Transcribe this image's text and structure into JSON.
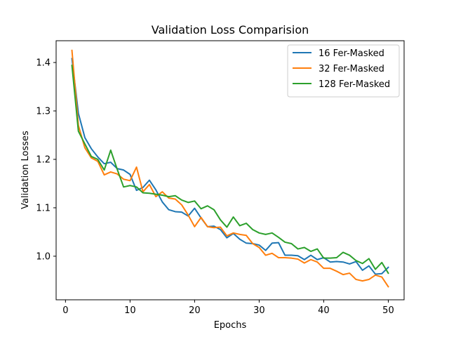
{
  "chart_data": {
    "type": "line",
    "title": "Validation Loss Comparision",
    "xlabel": "Epochs",
    "ylabel": "Validation Losses",
    "xlim": [
      -1.45,
      52.45
    ],
    "ylim": [
      0.91,
      1.445
    ],
    "xticks": [
      0,
      10,
      20,
      30,
      40,
      50
    ],
    "yticks": [
      1.0,
      1.1,
      1.2,
      1.3,
      1.4
    ],
    "grid": false,
    "legend_position": "top-right",
    "x": [
      1,
      2,
      3,
      4,
      5,
      6,
      7,
      8,
      9,
      10,
      11,
      12,
      13,
      14,
      15,
      16,
      17,
      18,
      19,
      20,
      21,
      22,
      23,
      24,
      25,
      26,
      27,
      28,
      29,
      30,
      31,
      32,
      33,
      34,
      35,
      36,
      37,
      38,
      39,
      40,
      41,
      42,
      43,
      44,
      45,
      46,
      47,
      48,
      49,
      50
    ],
    "series": [
      {
        "name": "16 Fer-Masked",
        "color": "#1f77b4",
        "values": [
          1.408,
          1.295,
          1.245,
          1.222,
          1.205,
          1.191,
          1.194,
          1.181,
          1.178,
          1.169,
          1.136,
          1.142,
          1.157,
          1.137,
          1.112,
          1.096,
          1.092,
          1.091,
          1.083,
          1.099,
          1.079,
          1.061,
          1.062,
          1.055,
          1.038,
          1.047,
          1.035,
          1.027,
          1.026,
          1.023,
          1.012,
          1.027,
          1.028,
          1.002,
          1.002,
          1.001,
          0.993,
          1.002,
          0.993,
          0.997,
          0.988,
          0.989,
          0.988,
          0.984,
          0.989,
          0.971,
          0.98,
          0.963,
          0.964,
          0.977
        ]
      },
      {
        "name": "32 Fer-Masked",
        "color": "#ff7f0e",
        "values": [
          1.425,
          1.27,
          1.224,
          1.203,
          1.196,
          1.168,
          1.174,
          1.17,
          1.159,
          1.156,
          1.184,
          1.133,
          1.148,
          1.123,
          1.133,
          1.12,
          1.118,
          1.106,
          1.085,
          1.061,
          1.08,
          1.061,
          1.059,
          1.06,
          1.042,
          1.048,
          1.045,
          1.043,
          1.026,
          1.018,
          1.002,
          1.006,
          0.997,
          0.997,
          0.996,
          0.994,
          0.986,
          0.993,
          0.988,
          0.975,
          0.975,
          0.969,
          0.962,
          0.965,
          0.952,
          0.949,
          0.952,
          0.961,
          0.957,
          0.937
        ]
      },
      {
        "name": "128 Fer-Masked",
        "color": "#2ca02c",
        "values": [
          1.394,
          1.258,
          1.232,
          1.206,
          1.2,
          1.178,
          1.219,
          1.18,
          1.143,
          1.146,
          1.143,
          1.131,
          1.13,
          1.128,
          1.126,
          1.123,
          1.125,
          1.116,
          1.111,
          1.114,
          1.098,
          1.104,
          1.096,
          1.075,
          1.06,
          1.081,
          1.063,
          1.068,
          1.055,
          1.048,
          1.045,
          1.048,
          1.039,
          1.029,
          1.026,
          1.015,
          1.018,
          1.01,
          1.015,
          0.996,
          0.996,
          0.997,
          1.008,
          1.002,
          0.991,
          0.985,
          0.995,
          0.973,
          0.987,
          0.965
        ]
      }
    ]
  }
}
